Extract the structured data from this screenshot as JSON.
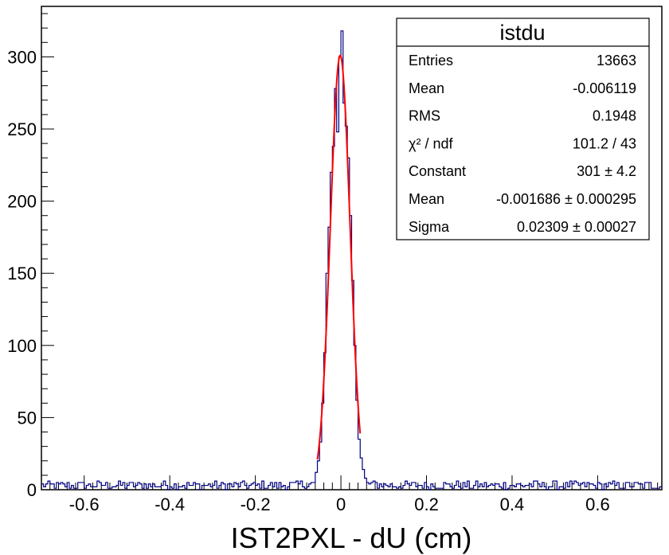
{
  "chart_data": {
    "type": "histogram",
    "title": "",
    "xlabel": "IST2PXL - dU (cm)",
    "ylabel": "",
    "xlim": [
      -0.7,
      0.75
    ],
    "ylim": [
      0,
      335
    ],
    "xticks": [
      -0.6,
      -0.4,
      -0.2,
      0,
      0.2,
      0.4,
      0.6
    ],
    "xtick_labels": [
      "-0.6",
      "-0.4",
      "-0.2",
      "0",
      "0.2",
      "0.4",
      "0.6"
    ],
    "yticks": [
      0,
      50,
      100,
      150,
      200,
      250,
      300
    ],
    "ytick_labels": [
      "0",
      "50",
      "100",
      "150",
      "200",
      "250",
      "300"
    ],
    "grid": false,
    "histogram_color": "#000080",
    "fit_color": "#ff0000",
    "bin_width": 0.005,
    "peak_bins": [
      {
        "x": -0.0575,
        "y": 12
      },
      {
        "x": -0.0525,
        "y": 20
      },
      {
        "x": -0.0475,
        "y": 33
      },
      {
        "x": -0.0425,
        "y": 60
      },
      {
        "x": -0.0375,
        "y": 95
      },
      {
        "x": -0.0325,
        "y": 150
      },
      {
        "x": -0.0275,
        "y": 182
      },
      {
        "x": -0.0225,
        "y": 220
      },
      {
        "x": -0.0175,
        "y": 238
      },
      {
        "x": -0.0125,
        "y": 278
      },
      {
        "x": -0.0075,
        "y": 248
      },
      {
        "x": -0.0025,
        "y": 300
      },
      {
        "x": 0.0025,
        "y": 318
      },
      {
        "x": 0.0075,
        "y": 268
      },
      {
        "x": 0.0125,
        "y": 252
      },
      {
        "x": 0.0175,
        "y": 230
      },
      {
        "x": 0.0225,
        "y": 190
      },
      {
        "x": 0.0275,
        "y": 145
      },
      {
        "x": 0.0325,
        "y": 100
      },
      {
        "x": 0.0375,
        "y": 62
      },
      {
        "x": 0.0425,
        "y": 35
      },
      {
        "x": 0.0475,
        "y": 22
      },
      {
        "x": 0.0525,
        "y": 14
      },
      {
        "x": 0.0575,
        "y": 8
      }
    ],
    "background_level": 3,
    "fit": {
      "function": "gaus",
      "constant": 301,
      "mean": -0.001686,
      "sigma": 0.02309,
      "range": [
        -0.055,
        0.045
      ]
    },
    "stats_box": {
      "title": "istdu",
      "rows": [
        {
          "label": "Entries",
          "value": "13663"
        },
        {
          "label": "Mean",
          "value": "-0.006119"
        },
        {
          "label": "RMS",
          "value": "0.1948"
        },
        {
          "label": "χ² / ndf",
          "value": "101.2 / 43"
        },
        {
          "label": "Constant",
          "value": "301 ± 4.2"
        },
        {
          "label": "Mean",
          "value": "-0.001686 ± 0.000295"
        },
        {
          "label": "Sigma",
          "value": "0.02309 ± 0.00027"
        }
      ]
    }
  }
}
